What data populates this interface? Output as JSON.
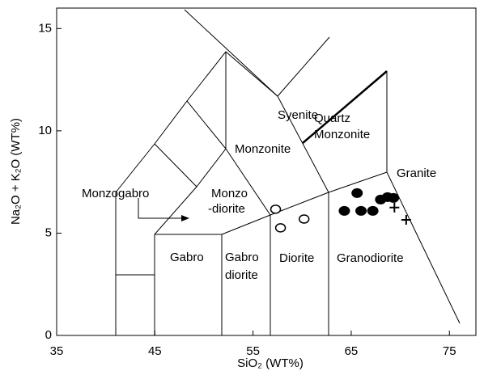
{
  "chart_data": {
    "type": "scatter",
    "xlabel": "SiO₂ (WT%)",
    "ylabel": "Na₂O + K₂O (WT%)",
    "xlim": [
      35,
      77.7
    ],
    "ylim": [
      0,
      16
    ],
    "xticks": [
      35,
      45,
      55,
      65,
      75
    ],
    "yticks": [
      0,
      5,
      10,
      15
    ],
    "field_labels": [
      "Syenite",
      "Quartz",
      "Monzonite",
      "Monzonite",
      "Granite",
      "Monzogabro",
      "Monzo",
      "-diorite",
      "Gabro",
      "Gabro",
      "diorite",
      "Diorite",
      "Granodiorite"
    ],
    "series": [
      {
        "marker": "filled-circle",
        "color": "#000000",
        "x": [
          64.3,
          66.0,
          67.2,
          65.6,
          68.0,
          68.7,
          69.3
        ],
        "values": [
          6.09,
          6.09,
          6.09,
          6.96,
          6.64,
          6.76,
          6.72
        ]
      },
      {
        "marker": "open-circle",
        "color": "#000000",
        "x": [
          57.3,
          57.8,
          60.2
        ],
        "values": [
          6.17,
          5.26,
          5.69
        ]
      },
      {
        "marker": "plus",
        "color": "#000000",
        "x": [
          69.4,
          70.6
        ],
        "values": [
          6.25,
          5.65
        ]
      }
    ]
  }
}
